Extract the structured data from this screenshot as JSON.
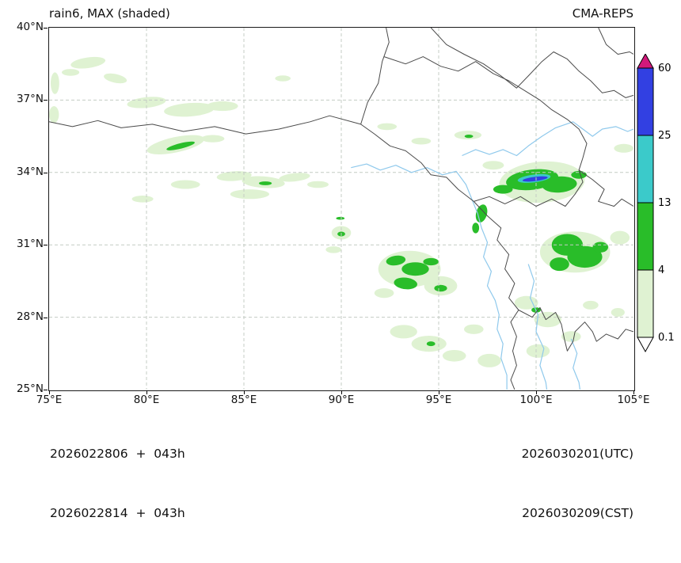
{
  "header": {
    "title_left": "rain6, MAX (shaded)",
    "title_right": "CMA-REPS"
  },
  "footer": {
    "init_line1": "2026022806  +  043h",
    "init_line2": "2026022814  +  043h",
    "valid_line1": "2026030201(UTC)",
    "valid_line2": "2026030209(CST)"
  },
  "axes": {
    "x_ticks": [
      {
        "label": "75°E",
        "lon": 75
      },
      {
        "label": "80°E",
        "lon": 80
      },
      {
        "label": "85°E",
        "lon": 85
      },
      {
        "label": "90°E",
        "lon": 90
      },
      {
        "label": "95°E",
        "lon": 95
      },
      {
        "label": "100°E",
        "lon": 100
      },
      {
        "label": "105°E",
        "lon": 105
      }
    ],
    "y_ticks": [
      {
        "label": "40°N",
        "lat": 40
      },
      {
        "label": "37°N",
        "lat": 37
      },
      {
        "label": "34°N",
        "lat": 34
      },
      {
        "label": "31°N",
        "lat": 31
      },
      {
        "label": "28°N",
        "lat": 28
      },
      {
        "label": "25°N",
        "lat": 25
      }
    ]
  },
  "colorbar": {
    "labels": [
      "0.1",
      "4",
      "13",
      "25",
      "60"
    ],
    "segments": [
      "light",
      "green",
      "cyan",
      "blue"
    ],
    "over_color": "magenta",
    "under_color": "white"
  },
  "chart_data": {
    "type": "heatmap",
    "variable": "rain6, MAX (shaded)",
    "model": "CMA-REPS",
    "init_times": [
      "2026022806 (UTC)",
      "2026022814 (CST)"
    ],
    "lead_hour": "043h",
    "valid_times": [
      "2026030201(UTC)",
      "2026030209(CST)"
    ],
    "xlim": [
      75,
      105
    ],
    "ylim": [
      25,
      40
    ],
    "levels": [
      0.1,
      4,
      13,
      25,
      60
    ],
    "colors": {
      "light": "#dff2d2",
      "green": "#29bd29",
      "cyan": "#3bcaca",
      "blue": "#3240e2",
      "magenta": "#d2197b",
      "white": "#ffffff",
      "boundary": "#4a4a4a",
      "river": "#8fc9ec",
      "grid": "#c4ccc4",
      "frame": "#1a1a1a"
    },
    "grid": {
      "lon_lines": [
        80,
        85,
        90,
        95,
        100
      ],
      "lat_lines": [
        28,
        31,
        34,
        37
      ]
    },
    "boundaries": [
      [
        [
          75,
          36.1
        ],
        [
          76.2,
          35.9
        ],
        [
          77.5,
          36.15
        ],
        [
          78.7,
          35.85
        ],
        [
          80.3,
          36.0
        ],
        [
          81.9,
          35.7
        ],
        [
          83.5,
          35.9
        ],
        [
          85.1,
          35.6
        ],
        [
          86.8,
          35.8
        ],
        [
          88.4,
          36.1
        ],
        [
          89.4,
          36.35
        ],
        [
          91.0,
          36.0
        ]
      ],
      [
        [
          91.0,
          36.0
        ],
        [
          91.35,
          36.9
        ],
        [
          91.9,
          37.7
        ],
        [
          92.1,
          38.6
        ],
        [
          92.45,
          39.4
        ],
        [
          92.3,
          40.0
        ]
      ],
      [
        [
          91.0,
          36.0
        ],
        [
          91.7,
          35.6
        ],
        [
          92.5,
          35.1
        ],
        [
          93.3,
          34.9
        ],
        [
          94.1,
          34.4
        ],
        [
          94.6,
          33.9
        ],
        [
          95.4,
          33.8
        ],
        [
          96.0,
          33.3
        ],
        [
          96.8,
          32.8
        ]
      ],
      [
        [
          96.8,
          32.8
        ],
        [
          97.5,
          32.2
        ],
        [
          98.2,
          31.7
        ],
        [
          98.0,
          31.2
        ],
        [
          98.6,
          30.6
        ],
        [
          98.4,
          30.0
        ],
        [
          98.9,
          29.4
        ],
        [
          98.6,
          28.8
        ],
        [
          99.1,
          28.3
        ],
        [
          98.7,
          27.8
        ],
        [
          99.0,
          27.2
        ],
        [
          98.8,
          26.6
        ],
        [
          99.0,
          26.0
        ],
        [
          98.7,
          25.4
        ],
        [
          98.9,
          25.0
        ]
      ],
      [
        [
          96.8,
          32.8
        ],
        [
          97.6,
          33.0
        ],
        [
          98.4,
          32.7
        ],
        [
          99.2,
          33.0
        ],
        [
          100.0,
          32.6
        ],
        [
          100.8,
          32.9
        ],
        [
          101.5,
          32.6
        ],
        [
          102.0,
          33.1
        ],
        [
          102.4,
          33.6
        ],
        [
          102.2,
          34.1
        ],
        [
          102.9,
          33.7
        ],
        [
          103.5,
          33.3
        ],
        [
          103.2,
          32.8
        ],
        [
          104.0,
          32.6
        ],
        [
          104.4,
          32.9
        ],
        [
          105,
          32.6
        ]
      ],
      [
        [
          92.2,
          38.8
        ],
        [
          93.3,
          38.5
        ],
        [
          94.2,
          38.8
        ],
        [
          95.1,
          38.4
        ],
        [
          96.0,
          38.2
        ],
        [
          96.9,
          38.6
        ],
        [
          97.8,
          38.1
        ],
        [
          98.6,
          37.8
        ],
        [
          99.4,
          37.4
        ],
        [
          100.2,
          37.0
        ],
        [
          100.8,
          36.6
        ],
        [
          101.6,
          36.2
        ],
        [
          102.2,
          35.8
        ],
        [
          102.6,
          35.2
        ],
        [
          102.4,
          34.6
        ],
        [
          102.2,
          34.1
        ]
      ],
      [
        [
          94.6,
          40.0
        ],
        [
          95.4,
          39.3
        ],
        [
          96.3,
          38.9
        ],
        [
          97.3,
          38.5
        ],
        [
          98.2,
          38.0
        ],
        [
          99.0,
          37.5
        ],
        [
          99.6,
          38.0
        ],
        [
          100.3,
          38.6
        ],
        [
          100.9,
          39.0
        ],
        [
          101.6,
          38.7
        ],
        [
          102.2,
          38.2
        ],
        [
          102.8,
          37.8
        ],
        [
          103.4,
          37.3
        ],
        [
          104.0,
          37.4
        ],
        [
          104.6,
          37.1
        ],
        [
          105,
          37.2
        ]
      ],
      [
        [
          103.2,
          40.0
        ],
        [
          103.6,
          39.3
        ],
        [
          104.2,
          38.9
        ],
        [
          104.8,
          39.0
        ],
        [
          105,
          38.9
        ]
      ],
      [
        [
          99.1,
          28.3
        ],
        [
          99.8,
          28.0
        ],
        [
          100.2,
          28.4
        ],
        [
          100.5,
          27.9
        ],
        [
          101.0,
          28.2
        ],
        [
          101.3,
          27.7
        ],
        [
          101.45,
          27.1
        ],
        [
          101.6,
          26.6
        ],
        [
          101.9,
          27.0
        ],
        [
          102.0,
          27.4
        ],
        [
          102.5,
          27.8
        ],
        [
          102.9,
          27.4
        ],
        [
          103.1,
          27.0
        ],
        [
          103.6,
          27.3
        ],
        [
          104.2,
          27.1
        ],
        [
          104.6,
          27.5
        ],
        [
          105,
          27.4
        ]
      ]
    ],
    "rivers": [
      [
        [
          90.5,
          34.2
        ],
        [
          91.3,
          34.35
        ],
        [
          92.0,
          34.1
        ],
        [
          92.8,
          34.3
        ],
        [
          93.6,
          34.0
        ],
        [
          94.4,
          34.2
        ],
        [
          95.2,
          33.9
        ],
        [
          95.9,
          34.05
        ],
        [
          96.4,
          33.5
        ],
        [
          96.7,
          32.9
        ],
        [
          97.0,
          32.3
        ],
        [
          97.2,
          31.7
        ],
        [
          97.5,
          31.1
        ],
        [
          97.3,
          30.5
        ],
        [
          97.7,
          29.9
        ],
        [
          97.5,
          29.3
        ],
        [
          97.9,
          28.7
        ],
        [
          98.1,
          28.1
        ],
        [
          98.0,
          27.5
        ],
        [
          98.3,
          26.9
        ],
        [
          98.2,
          26.3
        ],
        [
          98.5,
          25.6
        ],
        [
          98.5,
          25.0
        ]
      ],
      [
        [
          96.2,
          34.7
        ],
        [
          96.9,
          34.95
        ],
        [
          97.6,
          34.75
        ],
        [
          98.3,
          34.95
        ],
        [
          99.0,
          34.7
        ],
        [
          99.6,
          35.1
        ],
        [
          100.3,
          35.5
        ],
        [
          101.0,
          35.85
        ],
        [
          101.9,
          36.1
        ],
        [
          102.4,
          35.8
        ],
        [
          102.9,
          35.5
        ],
        [
          103.4,
          35.8
        ],
        [
          104.1,
          35.9
        ],
        [
          104.7,
          35.7
        ],
        [
          105,
          35.8
        ]
      ],
      [
        [
          99.6,
          30.2
        ],
        [
          99.9,
          29.5
        ],
        [
          99.7,
          28.8
        ],
        [
          100.1,
          28.1
        ],
        [
          100.0,
          27.4
        ],
        [
          100.4,
          26.7
        ],
        [
          100.2,
          26.0
        ],
        [
          100.5,
          25.3
        ],
        [
          100.55,
          25.0
        ]
      ],
      [
        [
          101.8,
          27.1
        ],
        [
          102.1,
          26.5
        ],
        [
          101.9,
          25.9
        ],
        [
          102.2,
          25.3
        ],
        [
          102.25,
          25.0
        ]
      ]
    ],
    "regions_format": [
      "lon",
      "lat",
      "rx_deg",
      "ry_deg",
      "rotation_deg",
      "level"
    ],
    "regions": [
      [
        77.0,
        38.55,
        0.9,
        0.22,
        -8,
        "light"
      ],
      [
        76.1,
        38.15,
        0.45,
        0.14,
        0,
        "light"
      ],
      [
        78.4,
        37.9,
        0.6,
        0.18,
        12,
        "light"
      ],
      [
        75.3,
        37.7,
        0.22,
        0.45,
        0,
        "light"
      ],
      [
        75.25,
        36.4,
        0.25,
        0.35,
        0,
        "light"
      ],
      [
        80.0,
        36.9,
        1.0,
        0.22,
        -6,
        "light"
      ],
      [
        82.2,
        36.6,
        1.3,
        0.28,
        -4,
        "light"
      ],
      [
        83.9,
        36.75,
        0.8,
        0.2,
        0,
        "light"
      ],
      [
        87.0,
        37.9,
        0.4,
        0.12,
        0,
        "light"
      ],
      [
        81.5,
        35.15,
        1.5,
        0.32,
        -12,
        "light"
      ],
      [
        81.75,
        35.1,
        0.75,
        0.11,
        -14,
        "green"
      ],
      [
        83.4,
        35.4,
        0.6,
        0.15,
        0,
        "light"
      ],
      [
        92.35,
        35.9,
        0.5,
        0.14,
        0,
        "light"
      ],
      [
        94.1,
        35.3,
        0.5,
        0.14,
        0,
        "light"
      ],
      [
        96.5,
        35.55,
        0.7,
        0.18,
        0,
        "light"
      ],
      [
        96.55,
        35.5,
        0.22,
        0.07,
        0,
        "green"
      ],
      [
        84.5,
        33.85,
        0.9,
        0.2,
        -4,
        "light"
      ],
      [
        86.0,
        33.6,
        1.1,
        0.24,
        4,
        "light"
      ],
      [
        87.6,
        33.8,
        0.8,
        0.17,
        -6,
        "light"
      ],
      [
        88.8,
        33.5,
        0.55,
        0.14,
        0,
        "light"
      ],
      [
        85.3,
        33.1,
        1.0,
        0.2,
        0,
        "light"
      ],
      [
        86.1,
        33.55,
        0.33,
        0.08,
        0,
        "green"
      ],
      [
        82.0,
        33.5,
        0.75,
        0.18,
        0,
        "light"
      ],
      [
        79.8,
        32.9,
        0.55,
        0.14,
        0,
        "light"
      ],
      [
        90.0,
        31.5,
        0.5,
        0.28,
        0,
        "light"
      ],
      [
        90.0,
        31.45,
        0.2,
        0.1,
        0,
        "green"
      ],
      [
        89.6,
        30.8,
        0.4,
        0.14,
        0,
        "light"
      ],
      [
        89.95,
        32.1,
        0.22,
        0.06,
        0,
        "green"
      ],
      [
        93.5,
        30.0,
        1.6,
        0.75,
        0,
        "light"
      ],
      [
        92.8,
        30.35,
        0.5,
        0.2,
        -8,
        "green"
      ],
      [
        93.8,
        30.0,
        0.7,
        0.28,
        0,
        "green"
      ],
      [
        94.6,
        30.3,
        0.4,
        0.15,
        0,
        "green"
      ],
      [
        93.3,
        29.4,
        0.6,
        0.24,
        6,
        "green"
      ],
      [
        95.1,
        29.3,
        0.85,
        0.4,
        0,
        "light"
      ],
      [
        95.1,
        29.2,
        0.33,
        0.14,
        0,
        "green"
      ],
      [
        92.2,
        29.0,
        0.5,
        0.2,
        0,
        "light"
      ],
      [
        93.2,
        27.4,
        0.7,
        0.28,
        0,
        "light"
      ],
      [
        94.5,
        26.9,
        0.9,
        0.33,
        0,
        "light"
      ],
      [
        94.6,
        26.9,
        0.22,
        0.1,
        0,
        "green"
      ],
      [
        95.8,
        26.4,
        0.6,
        0.24,
        0,
        "light"
      ],
      [
        96.8,
        27.5,
        0.5,
        0.2,
        0,
        "light"
      ],
      [
        97.6,
        26.2,
        0.6,
        0.28,
        0,
        "light"
      ],
      [
        100.3,
        33.6,
        2.2,
        0.85,
        -4,
        "light"
      ],
      [
        99.8,
        33.7,
        1.35,
        0.42,
        -7,
        "green"
      ],
      [
        101.2,
        33.5,
        0.9,
        0.33,
        -4,
        "green"
      ],
      [
        99.9,
        33.75,
        0.85,
        0.16,
        -7,
        "cyan"
      ],
      [
        99.95,
        33.73,
        0.65,
        0.09,
        -7,
        "blue"
      ],
      [
        98.3,
        33.3,
        0.5,
        0.18,
        0,
        "green"
      ],
      [
        102.2,
        33.9,
        0.4,
        0.16,
        0,
        "green"
      ],
      [
        97.8,
        34.3,
        0.55,
        0.18,
        0,
        "light"
      ],
      [
        97.2,
        32.3,
        0.28,
        0.38,
        15,
        "green"
      ],
      [
        96.9,
        31.7,
        0.18,
        0.22,
        0,
        "green"
      ],
      [
        102.0,
        30.7,
        1.8,
        0.85,
        0,
        "light"
      ],
      [
        101.6,
        31.0,
        0.8,
        0.45,
        0,
        "green"
      ],
      [
        102.5,
        30.5,
        0.9,
        0.45,
        0,
        "green"
      ],
      [
        101.2,
        30.2,
        0.5,
        0.28,
        0,
        "green"
      ],
      [
        103.3,
        30.9,
        0.4,
        0.22,
        0,
        "green"
      ],
      [
        104.3,
        31.3,
        0.5,
        0.28,
        0,
        "light"
      ],
      [
        99.5,
        28.6,
        0.6,
        0.28,
        0,
        "light"
      ],
      [
        100.6,
        27.9,
        0.7,
        0.32,
        0,
        "light"
      ],
      [
        100.0,
        28.3,
        0.24,
        0.11,
        0,
        "green"
      ],
      [
        101.8,
        27.2,
        0.5,
        0.22,
        0,
        "light"
      ],
      [
        100.1,
        26.6,
        0.6,
        0.28,
        0,
        "light"
      ],
      [
        102.8,
        28.5,
        0.4,
        0.18,
        0,
        "light"
      ],
      [
        104.5,
        35.0,
        0.5,
        0.18,
        0,
        "light"
      ],
      [
        104.2,
        28.2,
        0.35,
        0.18,
        0,
        "light"
      ]
    ]
  }
}
